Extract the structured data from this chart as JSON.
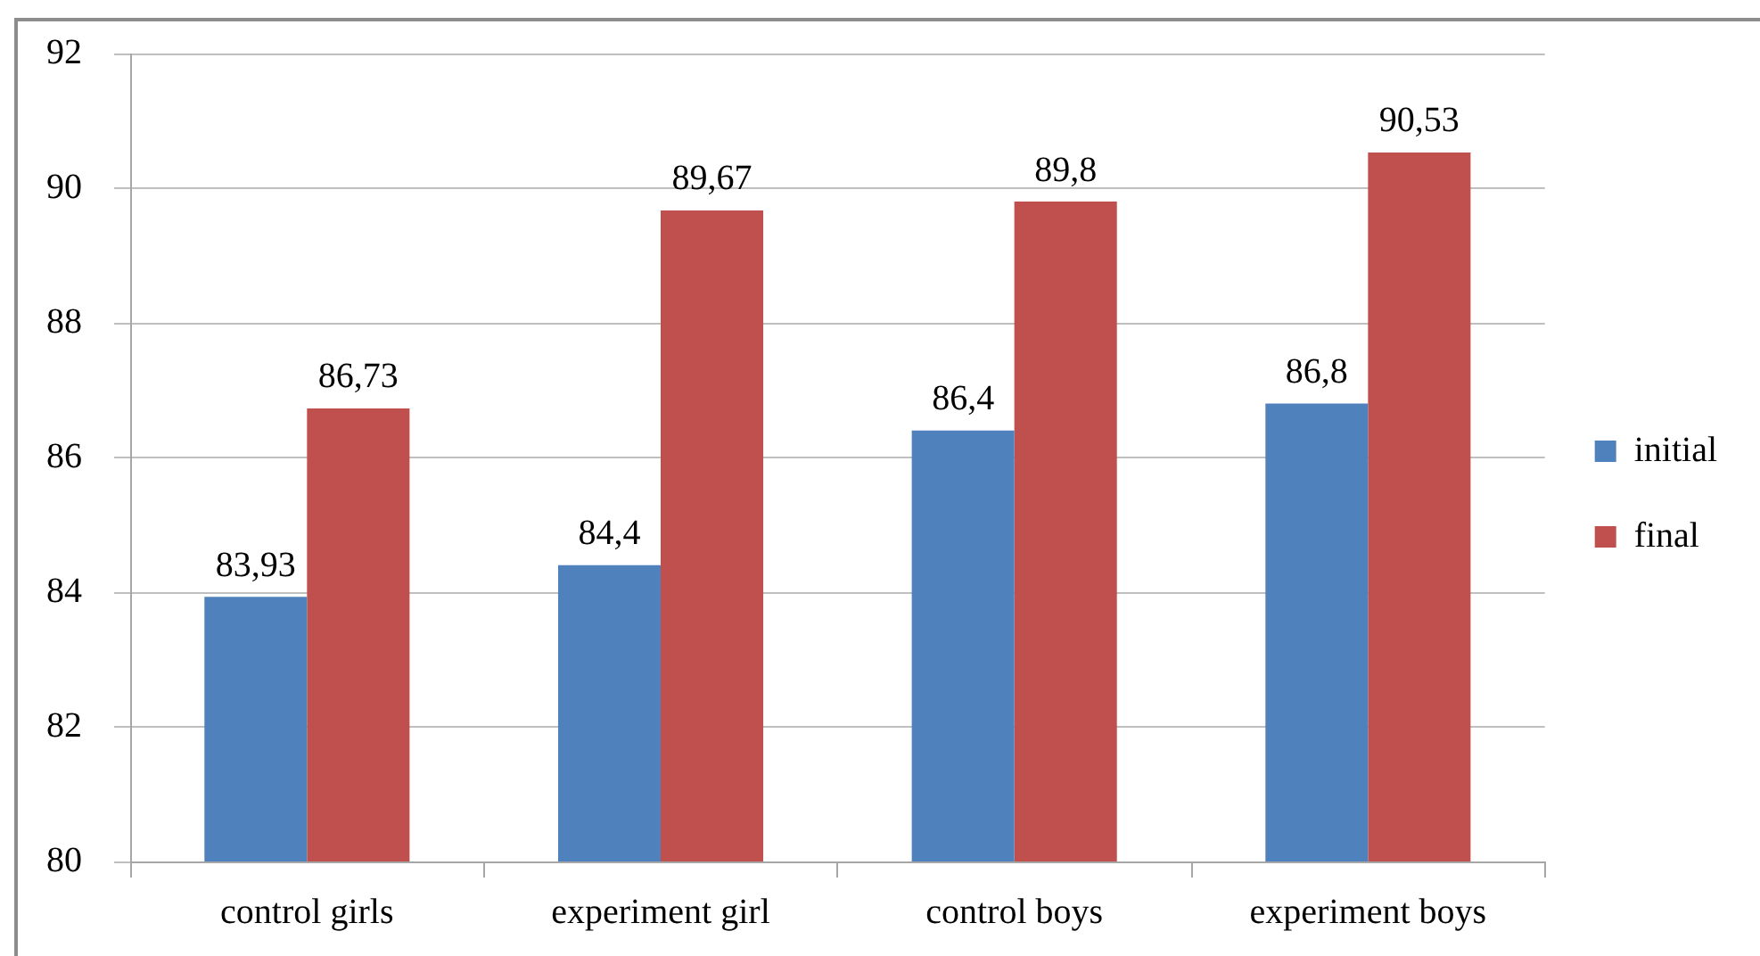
{
  "chart_data": {
    "type": "bar",
    "categories": [
      "control girls",
      "experiment girl",
      "control boys",
      "experiment boys"
    ],
    "series": [
      {
        "name": "initial",
        "color": "#4f81bd",
        "values": [
          83.93,
          84.4,
          86.4,
          86.8
        ],
        "value_labels": [
          "83,93",
          "84,4",
          "86,4",
          "86,8"
        ]
      },
      {
        "name": "final",
        "color": "#c0504d",
        "values": [
          86.73,
          89.67,
          89.8,
          90.53
        ],
        "value_labels": [
          "86,73",
          "89,67",
          "89,8",
          "90,53"
        ]
      }
    ],
    "ylim": [
      80,
      92
    ],
    "yticks": [
      80,
      82,
      84,
      86,
      88,
      90,
      92
    ],
    "grid": "y",
    "legend": "right"
  }
}
